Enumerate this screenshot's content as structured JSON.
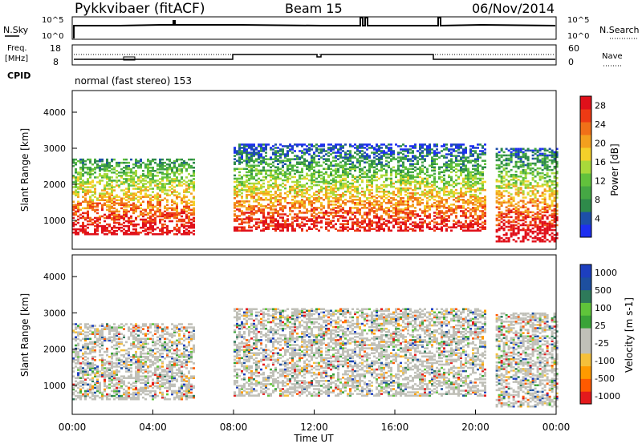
{
  "header": {
    "station": "Pykkvibaer (fitACF)",
    "beam": "Beam 15",
    "date": "06/Nov/2014"
  },
  "status_panel": {
    "left_label": "N.Sky",
    "right_label": "N.Search",
    "left_ticks": [
      "10^5",
      "10^0"
    ],
    "right_ticks": [
      "10^5",
      "10^0"
    ]
  },
  "freq_panel": {
    "left_label_1": "Freq.",
    "left_label_2": "[MHz]",
    "right_label": "Nave",
    "left_ticks": [
      "18",
      "8"
    ],
    "right_ticks": [
      "60",
      "0"
    ]
  },
  "cpid": {
    "label": "CPID",
    "text": "normal (fast stereo) 153"
  },
  "colors": {
    "power": [
      "#1d2ff0",
      "#1d4fa8",
      "#2e8a4a",
      "#45a844",
      "#62c23c",
      "#a9d93a",
      "#f4d02a",
      "#f3a01e",
      "#f07018",
      "#ee3a14",
      "#e0101a"
    ],
    "velocity": [
      "#e41a1c",
      "#ff5a00",
      "#ff9a00",
      "#f5c03a",
      "#c0c0b8",
      "#c0c0b8",
      "#3aa338",
      "#5fc43a",
      "#2e7a5a",
      "#1d4f9f",
      "#1d3fbf"
    ],
    "frame": "#000000"
  },
  "chart_data": [
    {
      "type": "heatmap",
      "title": "",
      "xlabel": "Time UT",
      "ylabel": "Slant Range [km]",
      "xlim": [
        "00:00",
        "24:00"
      ],
      "ylim": [
        200,
        4600
      ],
      "x_ticks": [
        "00:00",
        "04:00",
        "08:00",
        "12:00",
        "16:00",
        "20:00",
        "00:00"
      ],
      "y_ticks": [
        1000,
        2000,
        3000,
        4000
      ],
      "colorbar": {
        "label": "Power [dB]",
        "ticks": [
          4,
          8,
          12,
          16,
          20,
          24,
          28
        ],
        "range": [
          0,
          30
        ]
      },
      "x_hours_approx": [
        0,
        2,
        4,
        6,
        8,
        10,
        12,
        14,
        16,
        18,
        20,
        22,
        24
      ],
      "echo_regions_approx": [
        {
          "start": "00:00",
          "end": "06:00",
          "range_km": [
            600,
            2700
          ],
          "power_db": "4-30"
        },
        {
          "start": "08:00",
          "end": "20:30",
          "range_km": [
            700,
            3100
          ],
          "power_db": "4-30"
        },
        {
          "start": "21:00",
          "end": "24:00",
          "range_km": [
            400,
            3000
          ],
          "power_db": "4-28"
        }
      ]
    },
    {
      "type": "heatmap",
      "title": "",
      "xlabel": "Time UT",
      "ylabel": "Slant Range [km]",
      "xlim": [
        "00:00",
        "24:00"
      ],
      "ylim": [
        200,
        4600
      ],
      "x_ticks": [
        "00:00",
        "04:00",
        "08:00",
        "12:00",
        "16:00",
        "20:00",
        "00:00"
      ],
      "y_ticks": [
        1000,
        2000,
        3000,
        4000
      ],
      "colorbar": {
        "label": "Velocity [m s-1]",
        "ticks": [
          1000,
          500,
          100,
          25,
          -25,
          -100,
          -500,
          -1000
        ]
      },
      "echo_regions_approx": [
        {
          "start": "00:00",
          "end": "06:00",
          "range_km": [
            600,
            2700
          ],
          "velocity_ms": "-500 to 500"
        },
        {
          "start": "08:00",
          "end": "20:30",
          "range_km": [
            700,
            3100
          ],
          "velocity_ms": "-25 to 25"
        },
        {
          "start": "21:00",
          "end": "24:00",
          "range_km": [
            400,
            3000
          ],
          "velocity_ms": "-1000 to 1000"
        }
      ]
    }
  ]
}
